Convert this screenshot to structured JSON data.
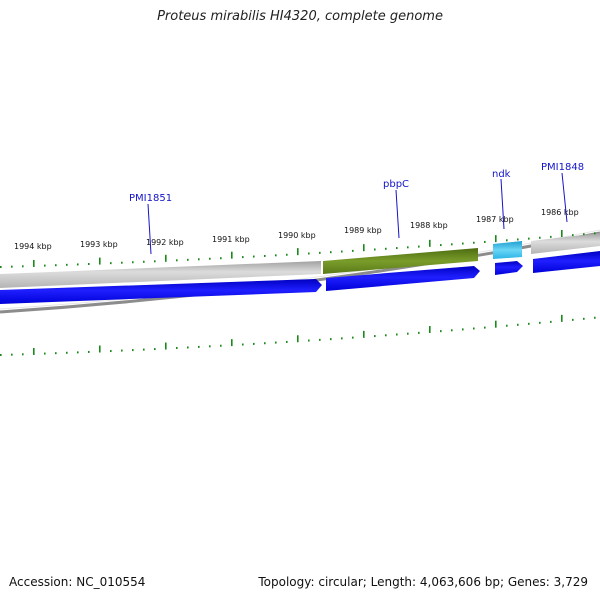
{
  "title": "Proteus mirabilis HI4320, complete genome",
  "footer": {
    "accession": "Accession: NC_010554",
    "summary": "Topology: circular; Length: 4,063,606 bp; Genes: 3,729"
  },
  "colors": {
    "backbone": "#8c8c8c",
    "feature_grey": "#c8c8c8",
    "feature_green": "#6b8c1e",
    "feature_cyan": "#33bbe0",
    "cds_blue": "#0000ee",
    "tick": "#1a8a1a",
    "label": "#1414c8"
  },
  "scale_labels": [
    "1994 kbp",
    "1993 kbp",
    "1992 kbp",
    "1991 kbp",
    "1990 kbp",
    "1989 kbp",
    "1988 kbp",
    "1987 kbp",
    "1986 kbp"
  ],
  "gene_labels": [
    "PMI1851",
    "pbpC",
    "ndk",
    "PMI1848"
  ]
}
